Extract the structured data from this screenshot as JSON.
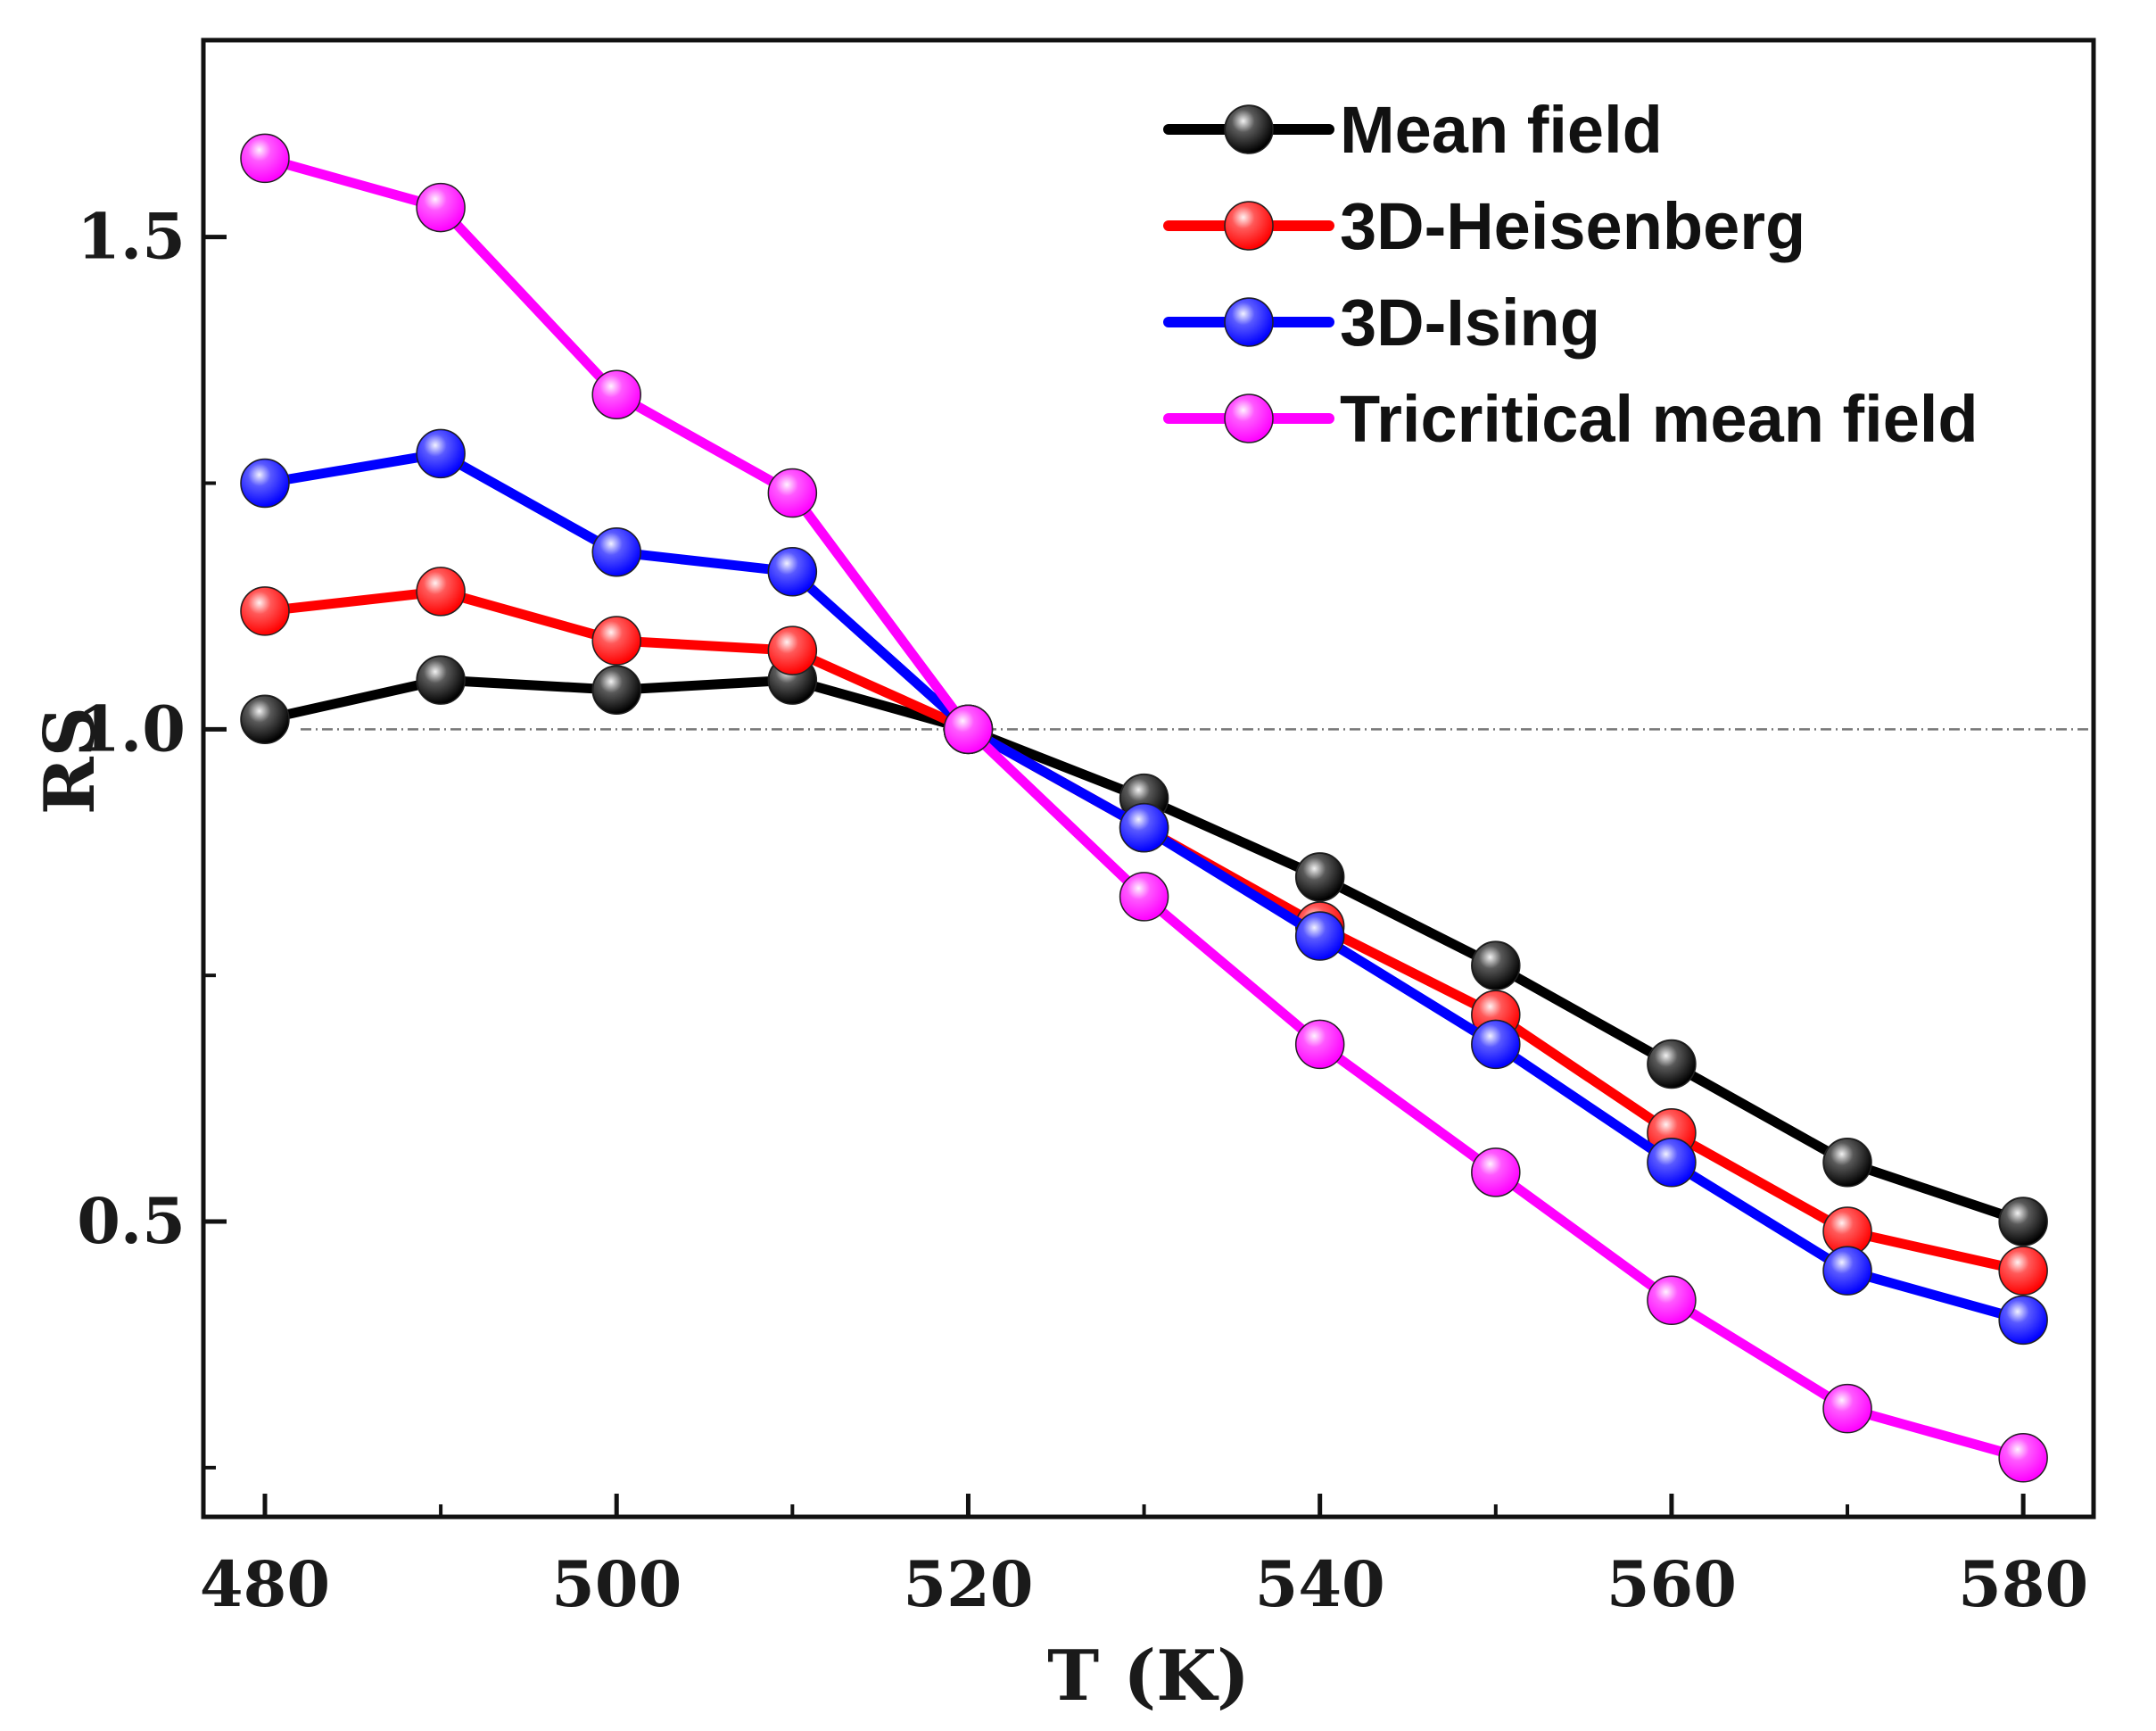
{
  "chart_data": {
    "type": "line",
    "title": "",
    "xlabel": "T (K)",
    "ylabel": "RS",
    "x": [
      480,
      490,
      500,
      510,
      520,
      530,
      540,
      550,
      560,
      570,
      580
    ],
    "xlim": [
      476.5,
      584
    ],
    "ylim": [
      0.2,
      1.7
    ],
    "xticks": [
      480,
      500,
      520,
      540,
      560,
      580
    ],
    "xtick_labels": [
      "480",
      "500",
      "520",
      "540",
      "560",
      "580"
    ],
    "yticks": [
      0.5,
      1.0,
      1.5
    ],
    "ytick_labels": [
      "0.5",
      "1.0",
      "1.5"
    ],
    "reference_line": {
      "y": 1.0,
      "style": "dash-dot"
    },
    "legend_position": "top-right",
    "grid": false,
    "series": [
      {
        "name": "Mean field",
        "color": "#000000",
        "values": [
          1.01,
          1.05,
          1.04,
          1.05,
          1.0,
          0.93,
          0.85,
          0.76,
          0.66,
          0.56,
          0.5
        ]
      },
      {
        "name": "3D-Heisenberg",
        "color": "#ff0000",
        "values": [
          1.12,
          1.14,
          1.09,
          1.08,
          1.0,
          0.9,
          0.8,
          0.71,
          0.59,
          0.49,
          0.45
        ]
      },
      {
        "name": "3D-Ising",
        "color": "#0000ff",
        "values": [
          1.25,
          1.28,
          1.18,
          1.16,
          1.0,
          0.9,
          0.79,
          0.68,
          0.56,
          0.45,
          0.4
        ]
      },
      {
        "name": "Tricritical mean field",
        "color": "#ff00ff",
        "values": [
          1.58,
          1.53,
          1.34,
          1.24,
          1.0,
          0.83,
          0.68,
          0.55,
          0.42,
          0.31,
          0.26
        ]
      }
    ]
  }
}
